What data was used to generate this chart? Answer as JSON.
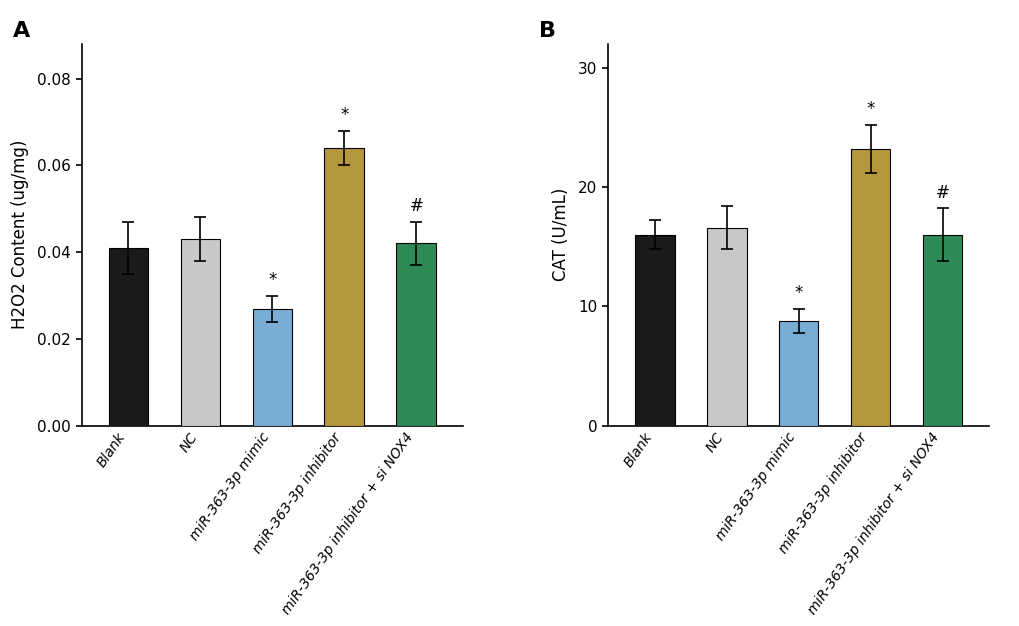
{
  "panel_A": {
    "title": "A",
    "ylabel": "H2O2 Content (ug/mg)",
    "categories": [
      "Blank",
      "NC",
      "miR-363-3p mimic",
      "miR-363-3p inhibitor",
      "miR-363-3p inhibitor + si NOX4"
    ],
    "values": [
      0.041,
      0.043,
      0.027,
      0.064,
      0.042
    ],
    "errors": [
      0.006,
      0.005,
      0.003,
      0.004,
      0.005
    ],
    "colors": [
      "#1a1a1a",
      "#c8c8c8",
      "#7aadd4",
      "#b5973c",
      "#2e8b57"
    ],
    "ylim": [
      0,
      0.088
    ],
    "yticks": [
      0.0,
      0.02,
      0.04,
      0.06,
      0.08
    ],
    "significance": [
      "",
      "",
      "*",
      "*",
      "#"
    ]
  },
  "panel_B": {
    "title": "B",
    "ylabel": "CAT (U/mL)",
    "categories": [
      "Blank",
      "NC",
      "miR-363-3p mimic",
      "miR-363-3p inhibitor",
      "miR-363-3p inhibitor + si NOX4"
    ],
    "values": [
      16.0,
      16.6,
      8.8,
      23.2,
      16.0
    ],
    "errors": [
      1.2,
      1.8,
      1.0,
      2.0,
      2.2
    ],
    "colors": [
      "#1a1a1a",
      "#c8c8c8",
      "#7aadd4",
      "#b5973c",
      "#2e8b57"
    ],
    "ylim": [
      0,
      32
    ],
    "yticks": [
      0,
      10,
      20,
      30
    ],
    "significance": [
      "",
      "",
      "*",
      "*",
      "#"
    ]
  },
  "bar_width": 0.55,
  "sig_fontsize": 12,
  "label_fontsize": 12,
  "tick_fontsize": 11,
  "title_fontsize": 16,
  "xtick_fontsize": 10,
  "background_color": "#ffffff",
  "capsize": 4,
  "label_rotation": 55
}
